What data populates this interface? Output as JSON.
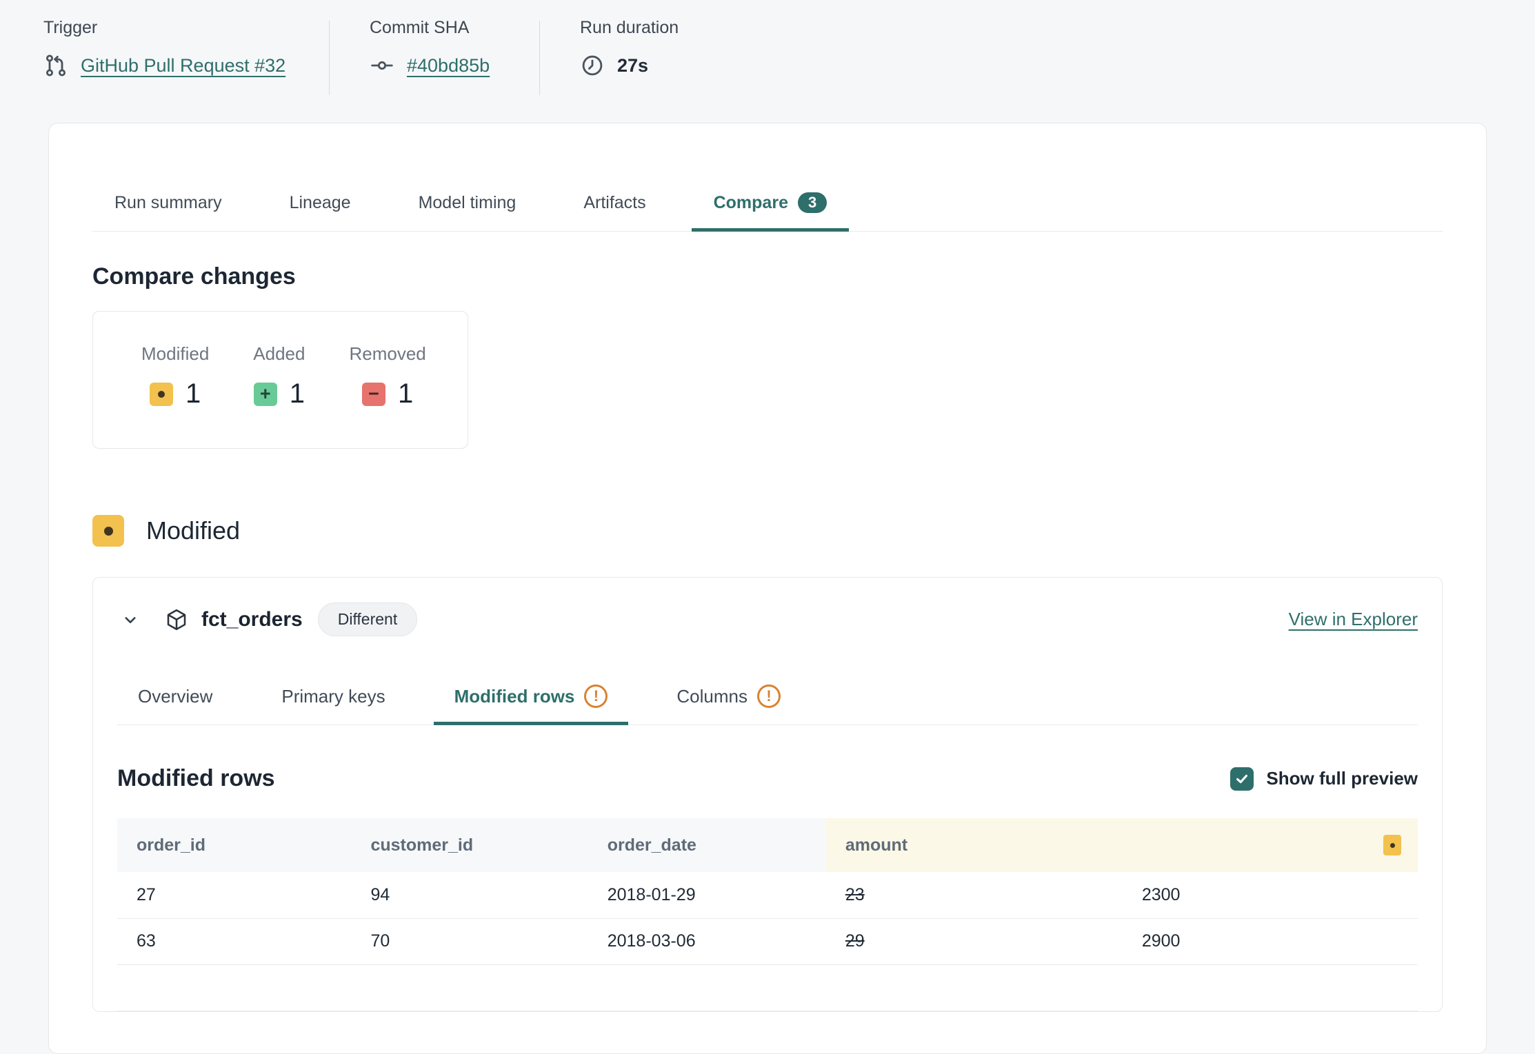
{
  "colors": {
    "accent_teal": "#2e6f6b",
    "modified_yellow": "#f2c14e",
    "added_green": "#68cb97",
    "removed_red": "#e6736d",
    "warning_orange": "#d9822f",
    "diff_old_text": "#cd423e",
    "diff_new_text": "#27915f",
    "diff_old_bg": "#fbedec",
    "diff_new_bg": "#e9f4ef",
    "amount_header_bg": "#fcf8e7"
  },
  "meta": {
    "trigger": {
      "label": "Trigger",
      "value": "GitHub Pull Request #32",
      "icon": "pull-request-icon"
    },
    "commit": {
      "label": "Commit SHA",
      "value": "#40bd85b",
      "icon": "commit-icon"
    },
    "duration": {
      "label": "Run duration",
      "value": "27s",
      "icon": "clock-icon"
    }
  },
  "tabs": [
    {
      "label": "Run summary",
      "active": false
    },
    {
      "label": "Lineage",
      "active": false
    },
    {
      "label": "Model timing",
      "active": false
    },
    {
      "label": "Artifacts",
      "active": false
    },
    {
      "label": "Compare",
      "active": true,
      "badge": "3"
    }
  ],
  "compare": {
    "heading": "Compare changes",
    "stats": [
      {
        "label": "Modified",
        "value": "1",
        "kind": "modified",
        "glyph": "dot"
      },
      {
        "label": "Added",
        "value": "1",
        "kind": "added",
        "glyph": "+"
      },
      {
        "label": "Removed",
        "value": "1",
        "kind": "removed",
        "glyph": "−"
      }
    ]
  },
  "modified_section": {
    "label": "Modified"
  },
  "model": {
    "name": "fct_orders",
    "badge": "Different",
    "explorer_link": "View in Explorer",
    "tabs": [
      {
        "label": "Overview",
        "active": false,
        "warning": false
      },
      {
        "label": "Primary keys",
        "active": false,
        "warning": false
      },
      {
        "label": "Modified rows",
        "active": true,
        "warning": true
      },
      {
        "label": "Columns",
        "active": false,
        "warning": true
      }
    ],
    "section": {
      "heading": "Modified rows",
      "preview_label": "Show full preview",
      "preview_checked": true
    }
  },
  "table": {
    "columns": [
      "order_id",
      "customer_id",
      "order_date",
      "amount"
    ],
    "rows": [
      {
        "order_id": "27",
        "customer_id": "94",
        "order_date": "2018-01-29",
        "amount_old": "23",
        "amount_new": "2300"
      },
      {
        "order_id": "63",
        "customer_id": "70",
        "order_date": "2018-03-06",
        "amount_old": "29",
        "amount_new": "2900"
      },
      {
        "order_id": "",
        "customer_id": "",
        "order_date": "",
        "amount_old": "",
        "amount_new": ""
      }
    ]
  }
}
